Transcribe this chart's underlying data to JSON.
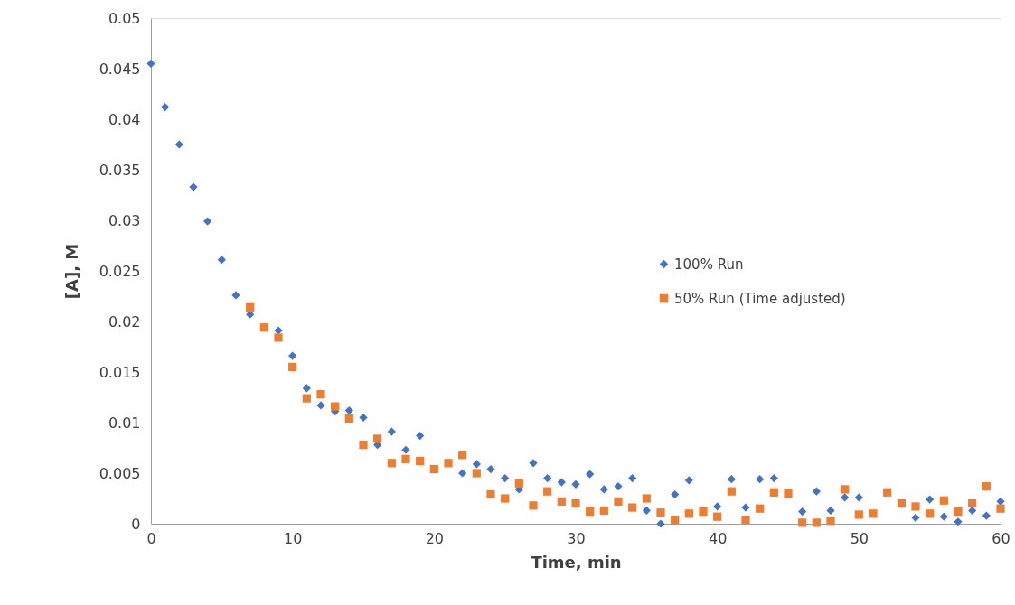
{
  "chart_data": {
    "type": "scatter",
    "xlabel": "Time, min",
    "ylabel": "[A], M",
    "x": [
      0,
      1,
      2,
      3,
      4,
      5,
      6,
      7,
      8,
      9,
      10,
      11,
      12,
      13,
      14,
      15,
      16,
      17,
      18,
      19,
      20,
      21,
      22,
      23,
      24,
      25,
      26,
      27,
      28,
      29,
      30,
      31,
      32,
      33,
      34,
      35,
      36,
      37,
      38,
      39,
      40,
      41,
      42,
      43,
      44,
      45,
      46,
      47,
      48,
      49,
      50,
      51,
      52,
      53,
      54,
      55,
      56,
      57,
      58,
      59,
      60
    ],
    "series": [
      {
        "name": "100% Run",
        "color": "#4472c4",
        "marker": "diamond",
        "values": [
          0.0455,
          0.0412,
          0.0375,
          0.0333,
          0.0299,
          0.0261,
          0.0226,
          0.0207,
          null,
          0.0191,
          0.0166,
          0.0134,
          0.0117,
          0.0111,
          0.0112,
          0.0105,
          0.0078,
          0.0091,
          0.0073,
          0.0087,
          null,
          null,
          0.005,
          0.0059,
          0.0054,
          0.0045,
          0.0034,
          0.006,
          0.0045,
          0.0041,
          0.0039,
          0.0049,
          0.0034,
          0.0037,
          0.0045,
          0.0013,
          0.0,
          0.0029,
          0.0043,
          null,
          0.0017,
          0.0044,
          0.0016,
          0.0044,
          0.0045,
          null,
          0.0012,
          0.0032,
          0.0013,
          0.0026,
          0.0026,
          null,
          null,
          null,
          0.0006,
          0.0024,
          0.0007,
          0.0002,
          0.0013,
          0.0008,
          0.0022
        ]
      },
      {
        "name": "50% Run (Time adjusted)",
        "color": "#ed7d31",
        "marker": "square",
        "values": [
          null,
          null,
          null,
          null,
          null,
          null,
          null,
          0.0214,
          0.0194,
          0.0184,
          0.0155,
          0.0124,
          0.0128,
          0.0116,
          0.0104,
          0.0078,
          0.0084,
          0.006,
          0.0064,
          0.0062,
          0.0054,
          0.006,
          0.0068,
          0.005,
          0.0029,
          0.0025,
          0.004,
          0.0018,
          0.0032,
          0.0022,
          0.002,
          0.0012,
          0.0013,
          0.0022,
          0.0016,
          0.0025,
          0.0011,
          0.0004,
          0.001,
          0.0012,
          0.0007,
          0.0032,
          0.0004,
          0.0015,
          0.0031,
          0.003,
          0.0001,
          0.0001,
          0.0003,
          0.0034,
          0.0009,
          0.001,
          0.0031,
          0.002,
          0.0017,
          0.001,
          0.0023,
          0.0012,
          0.002,
          0.0037,
          0.0015
        ]
      }
    ],
    "xlim": [
      0,
      60
    ],
    "xticks": [
      0,
      10,
      20,
      30,
      40,
      50,
      60
    ],
    "ylim": [
      0,
      0.05
    ],
    "yticks": [
      0,
      0.005,
      0.01,
      0.015,
      0.02,
      0.025,
      0.03,
      0.035,
      0.04,
      0.045,
      0.05
    ],
    "grid": false,
    "legend": "right"
  }
}
